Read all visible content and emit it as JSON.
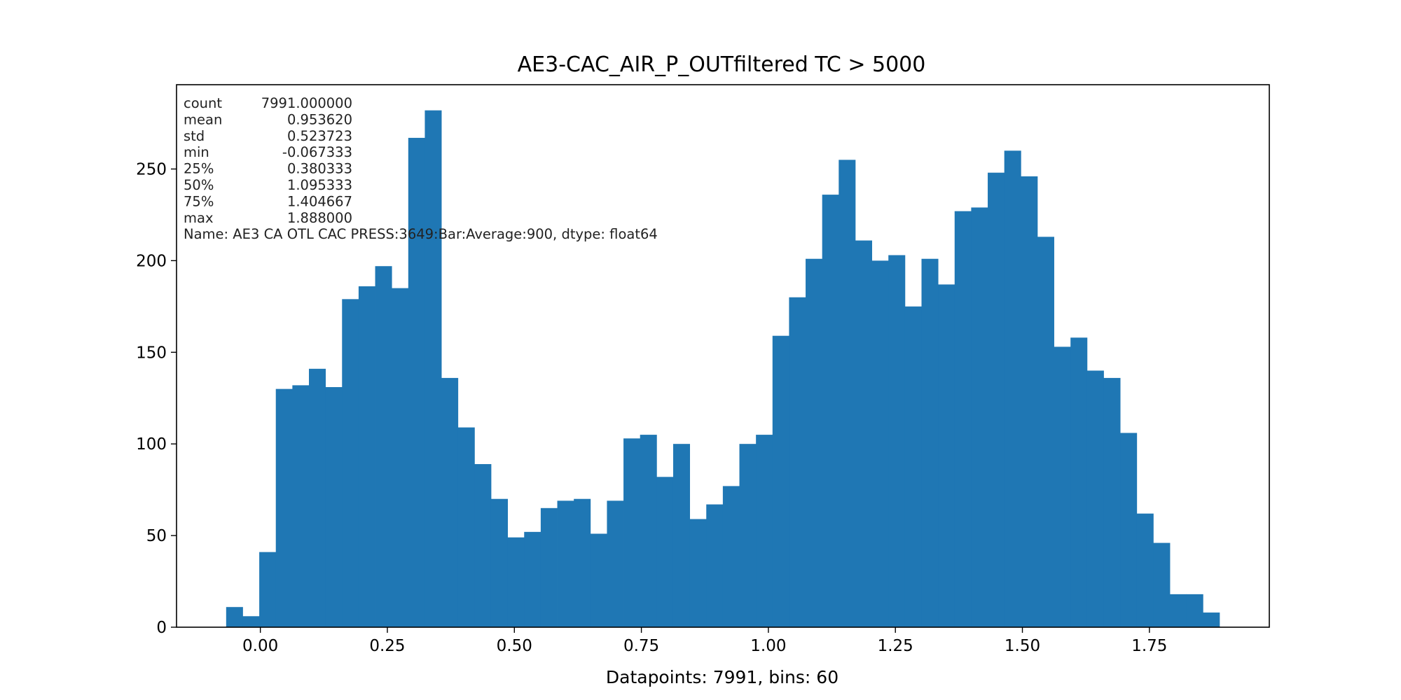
{
  "chart_data": {
    "type": "bar",
    "title": "AE3-CAC_AIR_P_OUTfiltered TC > 5000",
    "xlabel": "Datapoints: 7991, bins: 60",
    "ylabel": "",
    "bar_color": "#1f77b4",
    "x_range": [
      -0.067333,
      1.888
    ],
    "bins": 60,
    "xlim": [
      -0.165,
      1.986
    ],
    "ylim": [
      0,
      296
    ],
    "x_ticks": [
      "0.00",
      "0.25",
      "0.50",
      "0.75",
      "1.00",
      "1.25",
      "1.50",
      "1.75"
    ],
    "y_ticks": [
      "0",
      "50",
      "100",
      "150",
      "200",
      "250"
    ],
    "values": [
      11,
      6,
      41,
      130,
      132,
      141,
      131,
      179,
      186,
      197,
      185,
      267,
      282,
      136,
      109,
      89,
      70,
      49,
      52,
      65,
      69,
      70,
      51,
      69,
      103,
      105,
      82,
      100,
      59,
      67,
      77,
      100,
      105,
      159,
      180,
      201,
      236,
      255,
      211,
      200,
      203,
      175,
      201,
      187,
      227,
      229,
      248,
      260,
      246,
      213,
      153,
      158,
      140,
      136,
      106,
      62,
      46,
      18,
      18,
      8
    ],
    "grid": false,
    "annotation": {
      "lines": [
        {
          "key": "count",
          "value": "7991.000000"
        },
        {
          "key": "mean",
          "value": "0.953620"
        },
        {
          "key": "std",
          "value": "0.523723"
        },
        {
          "key": "min",
          "value": "-0.067333"
        },
        {
          "key": "25%",
          "value": "0.380333"
        },
        {
          "key": "50%",
          "value": "1.095333"
        },
        {
          "key": "75%",
          "value": "1.404667"
        },
        {
          "key": "max",
          "value": "1.888000"
        }
      ],
      "footer": "Name: AE3 CA OTL CAC PRESS:3649:Bar:Average:900, dtype: float64"
    }
  }
}
